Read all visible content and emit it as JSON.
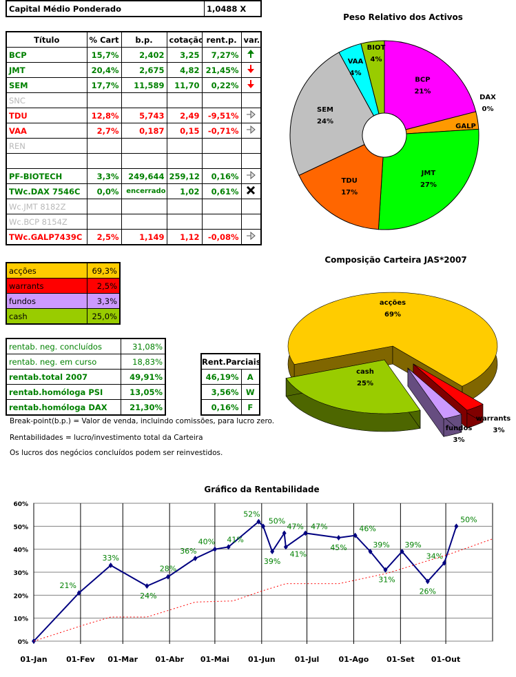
{
  "capital": {
    "label": "Capital Médio Ponderado",
    "value": "1,0488 X"
  },
  "titles_table": {
    "headers": [
      "Título",
      "% Cart",
      "b.p.",
      "cotação",
      "rent.p.",
      "var."
    ],
    "rows": [
      {
        "title": "BCP",
        "pct": "15,7%",
        "bp": "2,402",
        "cot": "3,25",
        "rent": "7,27%",
        "var": "arrow-up",
        "color": "green"
      },
      {
        "title": "JMT",
        "pct": "20,4%",
        "bp": "2,675",
        "cot": "4,82",
        "rent": "21,45%",
        "var": "arrow-down",
        "color": "green"
      },
      {
        "title": "SEM",
        "pct": "17,7%",
        "bp": "11,589",
        "cot": "11,70",
        "rent": "0,22%",
        "var": "arrow-down",
        "color": "green"
      },
      {
        "title": "SNC",
        "pct": "",
        "bp": "",
        "cot": "",
        "rent": "",
        "var": "",
        "color": "grey"
      },
      {
        "title": "TDU",
        "pct": "12,8%",
        "bp": "5,743",
        "cot": "2,49",
        "rent": "-9,51%",
        "var": "arrow-right",
        "color": "red"
      },
      {
        "title": "VAA",
        "pct": "2,7%",
        "bp": "0,187",
        "cot": "0,15",
        "rent": "-0,71%",
        "var": "arrow-right",
        "color": "red"
      },
      {
        "title": "REN",
        "pct": "",
        "bp": "",
        "cot": "",
        "rent": "",
        "var": "",
        "color": "grey"
      },
      {
        "title": "",
        "pct": "",
        "bp": "",
        "cot": "",
        "rent": "",
        "var": "",
        "color": "grey"
      },
      {
        "title": "PF-BIOTECH",
        "pct": "3,3%",
        "bp": "249,644",
        "cot": "259,12",
        "rent": "0,16%",
        "var": "arrow-right",
        "color": "green"
      },
      {
        "title": "TWc.DAX 7546C",
        "pct": "0,0%",
        "bp": "encerrado",
        "cot": "1,02",
        "rent": "0,61%",
        "var": "close-x",
        "color": "green"
      },
      {
        "title": "Wc.JMT 8182Z",
        "pct": "",
        "bp": "",
        "cot": "",
        "rent": "",
        "var": "",
        "color": "grey"
      },
      {
        "title": "Wc.BCP 8154Z",
        "pct": "",
        "bp": "",
        "cot": "",
        "rent": "",
        "var": "",
        "color": "grey"
      },
      {
        "title": "TWc.GALP7439C",
        "pct": "2,5%",
        "bp": "1,149",
        "cot": "1,12",
        "rent": "-0,08%",
        "var": "arrow-right",
        "color": "red"
      }
    ]
  },
  "composition_table": [
    {
      "label": "acções",
      "value": "69,3%",
      "color": "#ffcc00"
    },
    {
      "label": "warrants",
      "value": "2,5%",
      "color": "#ff0000"
    },
    {
      "label": "fundos",
      "value": "3,3%",
      "color": "#cc99ff"
    },
    {
      "label": "cash",
      "value": "25,0%",
      "color": "#99cc00"
    }
  ],
  "rentab_table": [
    {
      "label": "rentab. neg. concluídos",
      "value": "31,08%",
      "bold": false
    },
    {
      "label": "rentab. neg. em curso",
      "value": "18,83%",
      "bold": false
    },
    {
      "label": "rentab.total 2007",
      "value": "49,91%",
      "bold": true
    },
    {
      "label": "rentab.homóloga PSI",
      "value": "13,05%",
      "bold": true
    },
    {
      "label": "rentab.homóloga DAX",
      "value": "21,30%",
      "bold": true
    }
  ],
  "rent_parciais": {
    "header": "Rent.Parciais",
    "rows": [
      {
        "value": "46,19%",
        "code": "A"
      },
      {
        "value": "3,56%",
        "code": "W"
      },
      {
        "value": "0,16%",
        "code": "F"
      }
    ]
  },
  "notes": [
    "Break-point(b.p.) = Valor de venda, incluindo comissões, para lucro zero.",
    "Rentabilidades = lucro/investimento total da Carteira",
    "Os lucros dos negócios concluídos podem ser reinvestidos."
  ],
  "chart_data": [
    {
      "type": "pie",
      "variant": "donut",
      "title": "Peso Relativo dos Activos",
      "slices": [
        {
          "label": "BCP",
          "value": 21,
          "display": "21%",
          "color": "#ff00ff"
        },
        {
          "label": "DAX",
          "value": 0,
          "display": "0%",
          "color": "#3366ff"
        },
        {
          "label": "GALP",
          "value": 3,
          "display": "3%",
          "color": "#ff9900"
        },
        {
          "label": "JMT",
          "value": 27,
          "display": "27%",
          "color": "#00ff00"
        },
        {
          "label": "TDU",
          "value": 17,
          "display": "17%",
          "color": "#ff6600"
        },
        {
          "label": "SEM",
          "value": 24,
          "display": "24%",
          "color": "#c0c0c0"
        },
        {
          "label": "VAA",
          "value": 4,
          "display": "4%",
          "color": "#00ffff"
        },
        {
          "label": "BIOT",
          "value": 4,
          "display": "4%",
          "color": "#99cc00"
        }
      ]
    },
    {
      "type": "pie",
      "variant": "3d-exploded",
      "title": "Composição Carteira JAS*2007",
      "slices": [
        {
          "label": "acções",
          "value": 69,
          "display": "69%",
          "color": "#ffcc00",
          "side": "#806600"
        },
        {
          "label": "warrants",
          "value": 3,
          "display": "3%",
          "color": "#ff0000",
          "side": "#800000"
        },
        {
          "label": "fundos",
          "value": 3,
          "display": "3%",
          "color": "#cc99ff",
          "side": "#664d80"
        },
        {
          "label": "cash",
          "value": 25,
          "display": "25%",
          "color": "#99cc00",
          "side": "#4d6600"
        }
      ]
    },
    {
      "type": "line",
      "title": "Gráfico da Rentabilidade",
      "xlim": [
        "2007-01-01",
        "2007-11-01"
      ],
      "ylim": [
        0,
        60
      ],
      "x_ticks": [
        "01-Jan",
        "01-Fev",
        "01-Mar",
        "01-Abr",
        "01-Mai",
        "01-Jun",
        "01-Jul",
        "01-Ago",
        "01-Set",
        "01-Out"
      ],
      "x_tick_dates": [
        "2007-01-01",
        "2007-02-01",
        "2007-03-01",
        "2007-04-01",
        "2007-05-01",
        "2007-06-01",
        "2007-07-01",
        "2007-08-01",
        "2007-09-01",
        "2007-10-01"
      ],
      "y_ticks": [
        "0%",
        "10%",
        "20%",
        "30%",
        "40%",
        "50%",
        "60%"
      ],
      "grid": true,
      "series": [
        {
          "color": "#000080",
          "style": "solid-markers",
          "labels": true,
          "points": [
            [
              "2007-01-01",
              0
            ],
            [
              "2007-01-31",
              21
            ],
            [
              "2007-02-21",
              33
            ],
            [
              "2007-03-17",
              24
            ],
            [
              "2007-03-31",
              28
            ],
            [
              "2007-04-18",
              36
            ],
            [
              "2007-05-01",
              40
            ],
            [
              "2007-05-10",
              41
            ],
            [
              "2007-05-30",
              52
            ],
            [
              "2007-06-02",
              50
            ],
            [
              "2007-06-08",
              39
            ],
            [
              "2007-06-16",
              47
            ],
            [
              "2007-06-17",
              41
            ],
            [
              "2007-06-30",
              47
            ],
            [
              "2007-07-22",
              45
            ],
            [
              "2007-08-02",
              46
            ],
            [
              "2007-08-12",
              39
            ],
            [
              "2007-08-22",
              31
            ],
            [
              "2007-09-02",
              39
            ],
            [
              "2007-09-19",
              26
            ],
            [
              "2007-09-30",
              34
            ],
            [
              "2007-10-08",
              50
            ]
          ],
          "point_labels": [
            "",
            "21%",
            "33%",
            "24%",
            "28%",
            "36%",
            "40%",
            "41%",
            "52%",
            "50%",
            "39%",
            "47%",
            "41%",
            "47%",
            "45%",
            "46%",
            "39%",
            "31%",
            "39%",
            "26%",
            "34%",
            "50%"
          ]
        },
        {
          "color": "#ff0000",
          "style": "dotted",
          "labels": false,
          "points": [
            [
              "2007-01-01",
              0
            ],
            [
              "2007-02-03",
              7
            ],
            [
              "2007-02-21",
              10.5
            ],
            [
              "2007-03-17",
              10.5
            ],
            [
              "2007-04-18",
              17
            ],
            [
              "2007-05-13",
              17.5
            ],
            [
              "2007-06-02",
              22
            ],
            [
              "2007-06-17",
              25
            ],
            [
              "2007-07-22",
              25
            ],
            [
              "2007-08-23",
              29.5
            ],
            [
              "2007-10-04",
              38
            ],
            [
              "2007-11-01",
              44.5
            ]
          ]
        }
      ]
    }
  ]
}
